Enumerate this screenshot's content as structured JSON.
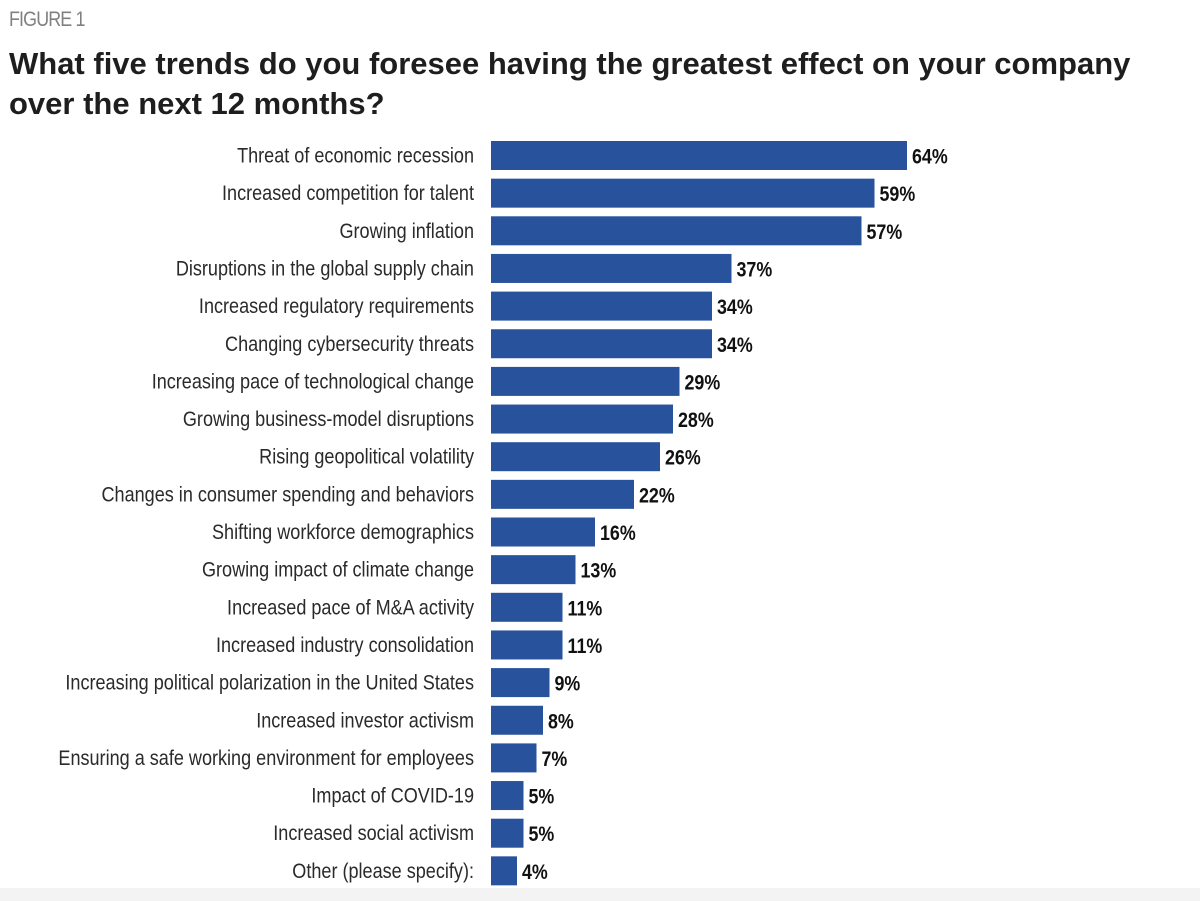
{
  "figure_label": "FIGURE 1",
  "title": "What five trends do you foresee having the greatest effect on your company over the next 12 months?",
  "colors": {
    "bar": "#28529c",
    "label_text": "#2a2a2a",
    "value_text": "#111111",
    "figure_label": "#808080"
  },
  "chart_data": {
    "type": "bar",
    "orientation": "horizontal",
    "title": "What five trends do you foresee having the greatest effect on your company over the next 12 months?",
    "xlabel": "",
    "ylabel": "",
    "unit": "%",
    "xlim": [
      0,
      100
    ],
    "grid": false,
    "legend": "none",
    "categories": [
      "Threat of economic recession",
      "Increased competition for talent",
      "Growing inflation",
      "Disruptions in the global supply chain",
      "Increased regulatory requirements",
      "Changing cybersecurity threats",
      "Increasing pace of technological change",
      "Growing business-model disruptions",
      "Rising geopolitical volatility",
      "Changes in consumer spending and behaviors",
      "Shifting workforce demographics",
      "Growing impact of climate change",
      "Increased pace of M&A activity",
      "Increased industry consolidation",
      "Increasing political polarization in the United States",
      "Increased investor activism",
      "Ensuring a safe working environment for employees",
      "Impact of COVID-19",
      "Increased social activism",
      "Other (please specify):"
    ],
    "values": [
      64,
      59,
      57,
      37,
      34,
      34,
      29,
      28,
      26,
      22,
      16,
      13,
      11,
      11,
      9,
      8,
      7,
      5,
      5,
      4
    ],
    "value_labels": [
      "64%",
      "59%",
      "57%",
      "37%",
      "34%",
      "34%",
      "29%",
      "28%",
      "26%",
      "22%",
      "16%",
      "13%",
      "11%",
      "11%",
      "9%",
      "8%",
      "7%",
      "5%",
      "5%",
      "4%"
    ]
  }
}
